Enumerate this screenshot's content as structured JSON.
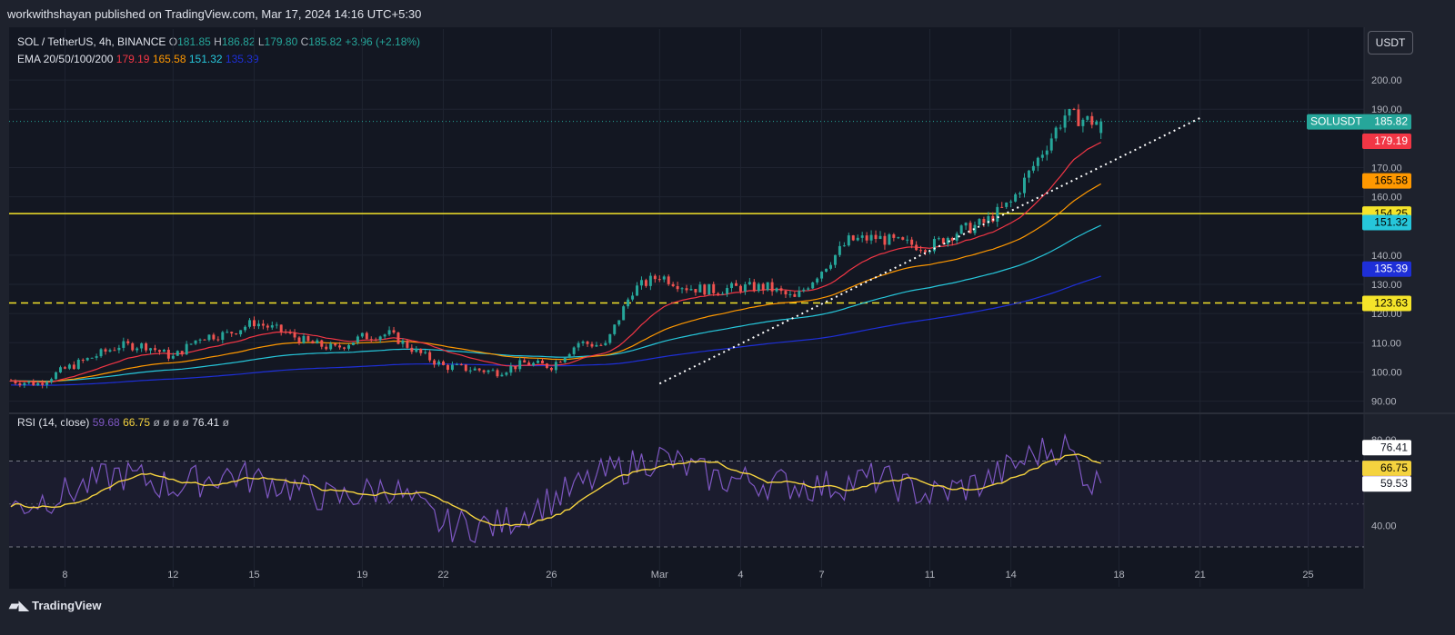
{
  "publisher": "workwithshayan published on TradingView.com, Mar 17, 2024 14:16 UTC+5:30",
  "symbol": "SOL / TetherUS, 4h, BINANCE",
  "ohlc": {
    "o_label": "O",
    "o": "181.85",
    "h_label": "H",
    "h": "186.82",
    "l_label": "L",
    "l": "179.80",
    "c_label": "C",
    "c": "185.82",
    "change": "+3.96 (+2.18%)"
  },
  "ema": {
    "label": "EMA 20/50/100/200",
    "v20": "179.19",
    "v50": "165.58",
    "v100": "151.32",
    "v200": "135.39",
    "c20": "#f23645",
    "c50": "#ff9800",
    "c100": "#26c6da",
    "c200": "#1e2fd8"
  },
  "rsi": {
    "label": "RSI (14, close)",
    "v1": "59.68",
    "v2": "66.75",
    "z1": "ø",
    "z2": "ø",
    "z3": "ø",
    "z4": "ø",
    "v3": "76.41",
    "z5": "ø",
    "c1": "#7e57c2",
    "c2": "#f5d33f"
  },
  "currency_button": "USDT",
  "footer_brand": "TradingView",
  "price_ticks": [
    "200.00",
    "190.00",
    "170.00",
    "160.00",
    "140.00",
    "130.00",
    "120.00",
    "110.00",
    "100.00",
    "90.00"
  ],
  "rsi_ticks": [
    "80.00",
    "40.00"
  ],
  "x_ticks": [
    "8",
    "12",
    "15",
    "19",
    "22",
    "26",
    "Mar",
    "4",
    "7",
    "11",
    "14",
    "18",
    "21",
    "25"
  ],
  "price_tags": {
    "symbol_tag": "SOLUSDT",
    "last": "185.82",
    "ema20": "179.19",
    "ema50": "165.58",
    "res": "154.25",
    "ema100": "151.32",
    "ema200": "135.39",
    "sup": "123.63"
  },
  "rsi_tags": [
    "76.41",
    "66.75",
    "59.68",
    "59.53"
  ],
  "chart_data": {
    "type": "candlestick",
    "title": "SOL / TetherUS, 4h, BINANCE",
    "y_range": [
      88,
      205
    ],
    "x_range_dates": [
      "2024-02-06",
      "2024-03-27"
    ],
    "horizontal_levels": [
      {
        "value": 154.25,
        "style": "solid",
        "color": "#f5e42a"
      },
      {
        "value": 123.63,
        "style": "dashed",
        "color": "#f5e42a"
      }
    ],
    "trendline": {
      "from": [
        "2024-03-01",
        96
      ],
      "to": [
        "2024-03-21",
        187
      ],
      "style": "dotted",
      "color": "#ffffff"
    },
    "close_series_approx": [
      [
        "2024-02-06",
        97
      ],
      [
        "2024-02-07",
        96
      ],
      [
        "2024-02-08",
        101
      ],
      [
        "2024-02-09",
        105
      ],
      [
        "2024-02-10",
        109
      ],
      [
        "2024-02-11",
        109
      ],
      [
        "2024-02-12",
        105
      ],
      [
        "2024-02-13",
        112
      ],
      [
        "2024-02-14",
        113
      ],
      [
        "2024-02-15",
        117
      ],
      [
        "2024-02-16",
        114
      ],
      [
        "2024-02-17",
        110
      ],
      [
        "2024-02-18",
        108
      ],
      [
        "2024-02-19",
        112
      ],
      [
        "2024-02-20",
        113
      ],
      [
        "2024-02-21",
        107
      ],
      [
        "2024-02-22",
        102
      ],
      [
        "2024-02-23",
        101
      ],
      [
        "2024-02-24",
        100
      ],
      [
        "2024-02-25",
        103
      ],
      [
        "2024-02-26",
        102
      ],
      [
        "2024-02-27",
        110
      ],
      [
        "2024-02-28",
        109
      ],
      [
        "2024-02-29",
        128
      ],
      [
        "2024-03-01",
        133
      ],
      [
        "2024-03-02",
        129
      ],
      [
        "2024-03-03",
        128
      ],
      [
        "2024-03-04",
        129
      ],
      [
        "2024-03-05",
        129
      ],
      [
        "2024-03-06",
        125
      ],
      [
        "2024-03-07",
        135
      ],
      [
        "2024-03-08",
        145
      ],
      [
        "2024-03-09",
        146
      ],
      [
        "2024-03-10",
        144
      ],
      [
        "2024-03-11",
        143
      ],
      [
        "2024-03-12",
        148
      ],
      [
        "2024-03-13",
        151
      ],
      [
        "2024-03-14",
        158
      ],
      [
        "2024-03-15",
        173
      ],
      [
        "2024-03-16",
        188
      ],
      [
        "2024-03-17",
        185.82
      ]
    ],
    "rsi_series_approx": [
      [
        "2024-02-06",
        48
      ],
      [
        "2024-02-08",
        55
      ],
      [
        "2024-02-10",
        64
      ],
      [
        "2024-02-12",
        58
      ],
      [
        "2024-02-14",
        64
      ],
      [
        "2024-02-16",
        59
      ],
      [
        "2024-02-18",
        52
      ],
      [
        "2024-02-20",
        58
      ],
      [
        "2024-02-22",
        40
      ],
      [
        "2024-02-24",
        40
      ],
      [
        "2024-02-26",
        52
      ],
      [
        "2024-02-28",
        64
      ],
      [
        "2024-03-01",
        72
      ],
      [
        "2024-03-03",
        62
      ],
      [
        "2024-03-05",
        60
      ],
      [
        "2024-03-07",
        58
      ],
      [
        "2024-03-09",
        62
      ],
      [
        "2024-03-11",
        54
      ],
      [
        "2024-03-13",
        60
      ],
      [
        "2024-03-15",
        74
      ],
      [
        "2024-03-16",
        77
      ],
      [
        "2024-03-17",
        59.68
      ]
    ],
    "rsi_range": [
      30,
      85
    ],
    "rsi_band": [
      30,
      70
    ]
  }
}
